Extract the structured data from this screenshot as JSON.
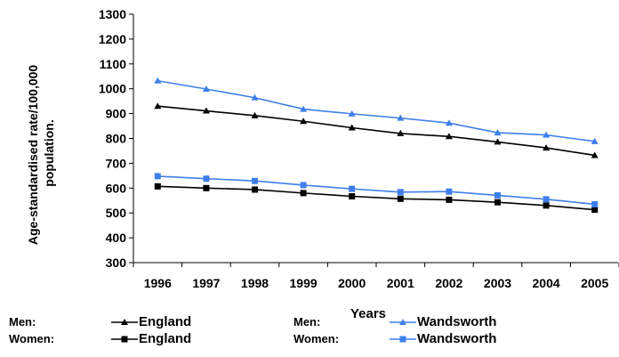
{
  "chart_data": {
    "type": "line",
    "title": "",
    "xlabel": "Years",
    "ylabel": "Age-standardised rate/100,000 population.",
    "ylim": [
      300,
      1300
    ],
    "yticks": [
      300,
      400,
      500,
      600,
      700,
      800,
      900,
      1000,
      1100,
      1200,
      1300
    ],
    "categories": [
      "1996",
      "1997",
      "1998",
      "1999",
      "2000",
      "2001",
      "2002",
      "2003",
      "2004",
      "2005"
    ],
    "grid": false,
    "legend_position": "bottom",
    "series": [
      {
        "group": "Men:",
        "name": "England",
        "color": "#000000",
        "marker": "triangle",
        "values": [
          930,
          911,
          892,
          869,
          843,
          820,
          808,
          786,
          762,
          732
        ]
      },
      {
        "group": "Men:",
        "name": "Wandsworth",
        "color": "#3f7fea",
        "marker": "triangle",
        "values": [
          1032,
          999,
          964,
          918,
          899,
          882,
          862,
          823,
          814,
          788
        ]
      },
      {
        "group": "Women:",
        "name": "England",
        "color": "#000000",
        "marker": "square",
        "values": [
          607,
          600,
          594,
          580,
          567,
          557,
          553,
          543,
          530,
          513
        ]
      },
      {
        "group": "Women:",
        "name": "Wandsworth",
        "color": "#3f7fea",
        "marker": "square",
        "values": [
          648,
          638,
          629,
          612,
          597,
          584,
          586,
          571,
          555,
          535
        ]
      }
    ]
  }
}
